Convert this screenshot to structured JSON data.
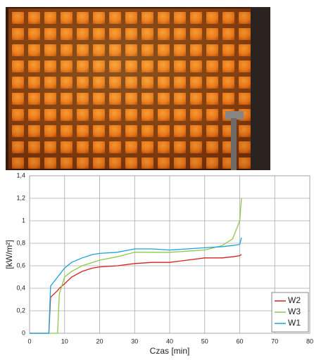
{
  "chart_data": {
    "type": "line",
    "x_label": "Czas [min]",
    "y_label": "[kW/m²]",
    "x": [
      0,
      5.5,
      6,
      8,
      8.5,
      10,
      12,
      15,
      18,
      20,
      25,
      30,
      35,
      40,
      45,
      50,
      55,
      58,
      60,
      60.5
    ],
    "series": [
      {
        "name": "W2",
        "color": "#d62020",
        "values": [
          0,
          0,
          0.32,
          0.38,
          0.4,
          0.44,
          0.5,
          0.55,
          0.58,
          0.59,
          0.6,
          0.62,
          0.63,
          0.63,
          0.65,
          0.67,
          0.67,
          0.68,
          0.69,
          0.7
        ]
      },
      {
        "name": "W3",
        "color": "#8cc84b",
        "values": [
          0,
          0,
          0,
          0,
          0.35,
          0.5,
          0.55,
          0.6,
          0.63,
          0.65,
          0.68,
          0.72,
          0.72,
          0.72,
          0.73,
          0.74,
          0.78,
          0.84,
          1.0,
          1.2
        ]
      },
      {
        "name": "W1",
        "color": "#1aa3dc",
        "values": [
          0,
          0,
          0.42,
          0.5,
          0.52,
          0.58,
          0.63,
          0.67,
          0.7,
          0.71,
          0.72,
          0.75,
          0.75,
          0.74,
          0.75,
          0.76,
          0.77,
          0.78,
          0.79,
          0.85
        ]
      }
    ],
    "xlim": [
      0,
      80
    ],
    "xticks": [
      0,
      10,
      20,
      30,
      40,
      50,
      60,
      70,
      80
    ],
    "ylim": [
      0,
      1.4
    ],
    "yticks": [
      {
        "value": 0,
        "label": "0"
      },
      {
        "value": 0.2,
        "label": "0,2"
      },
      {
        "value": 0.4,
        "label": "0,4"
      },
      {
        "value": 0.6,
        "label": "0,6"
      },
      {
        "value": 0.8,
        "label": "0,8"
      },
      {
        "value": 1,
        "label": "1"
      },
      {
        "value": 1.2,
        "label": "1,2"
      },
      {
        "value": 1.4,
        "label": "1,4"
      }
    ],
    "grid": true,
    "legend": "lower right"
  }
}
